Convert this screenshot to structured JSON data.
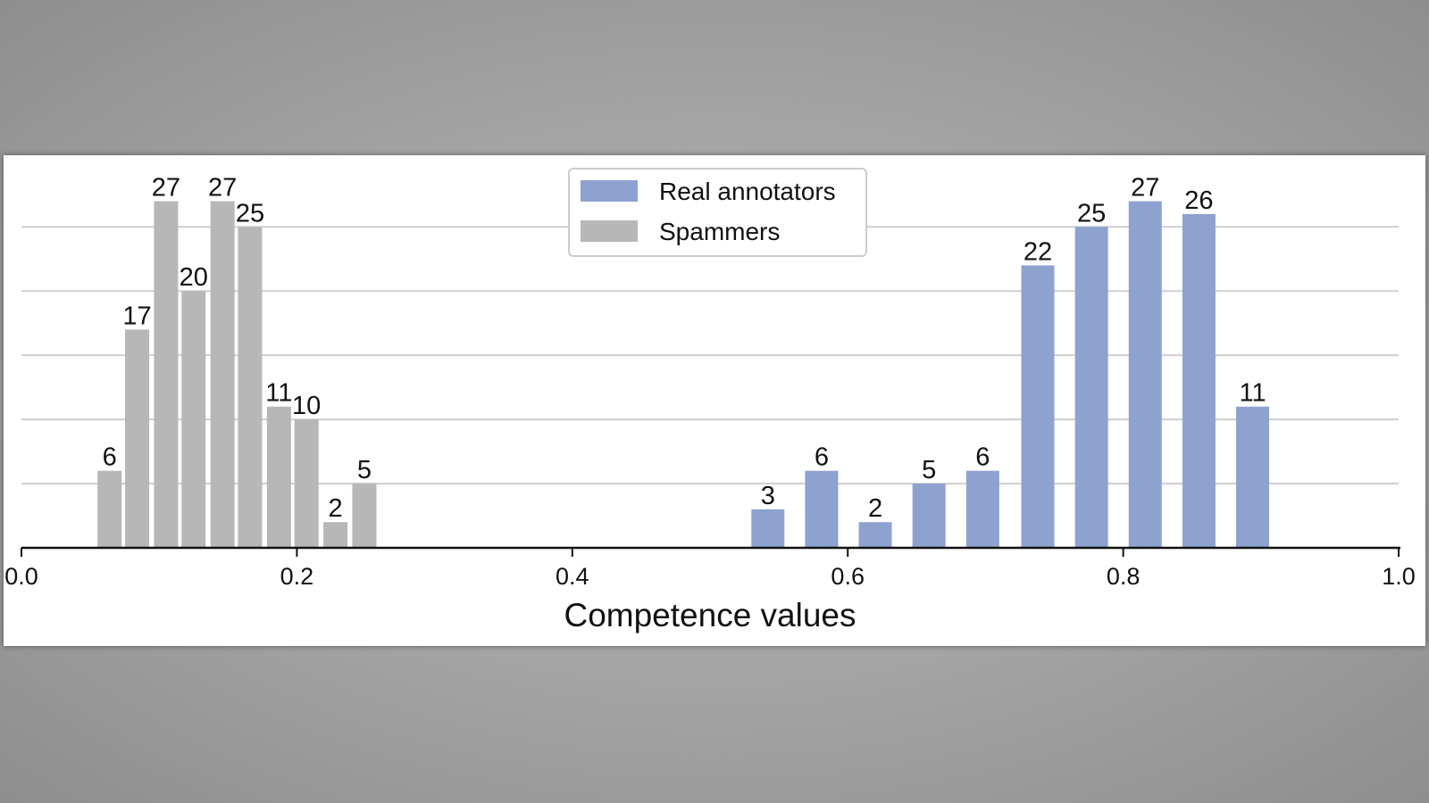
{
  "chart_data": {
    "type": "bar",
    "xlabel": "Competence values",
    "ylabel": "",
    "xlim": [
      0.0,
      1.0
    ],
    "ylim": [
      0,
      27.8
    ],
    "x_ticks": [
      "0.0",
      "0.2",
      "0.4",
      "0.6",
      "0.8",
      "1.0"
    ],
    "y_gridlines": [
      5,
      10,
      15,
      20,
      25
    ],
    "grid": "horizontal",
    "legend_position": "top-center",
    "colors": {
      "Real annotators": "#8ea2cf",
      "Spammers": "#b7b7b7"
    },
    "series": [
      {
        "name": "Spammers",
        "x": [
          0.064,
          0.084,
          0.105,
          0.125,
          0.146,
          0.166,
          0.187,
          0.207,
          0.228,
          0.249
        ],
        "values": [
          6,
          17,
          27,
          20,
          27,
          25,
          11,
          10,
          2,
          5
        ]
      },
      {
        "name": "Real annotators",
        "x": [
          0.542,
          0.581,
          0.62,
          0.659,
          0.698,
          0.738,
          0.777,
          0.816,
          0.855,
          0.894
        ],
        "values": [
          3,
          6,
          2,
          5,
          6,
          22,
          25,
          27,
          26,
          11
        ]
      }
    ]
  }
}
